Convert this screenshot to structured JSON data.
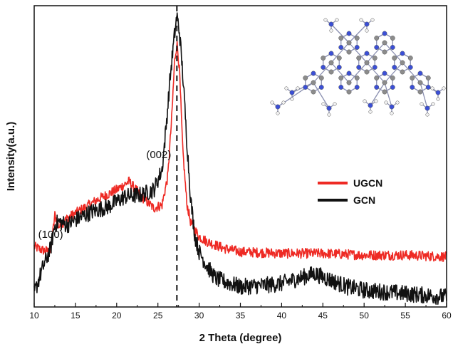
{
  "chart_data": {
    "type": "line",
    "title": "",
    "xlabel": "2 Theta (degree)",
    "ylabel": "Intensity(a.u.)",
    "xlim": [
      10,
      60
    ],
    "x_ticks": [
      10,
      15,
      20,
      25,
      30,
      35,
      40,
      45,
      50,
      55,
      60
    ],
    "y_ticks": [],
    "grid": false,
    "legend_position": "right",
    "reference_line_x": 27.3,
    "annotations": [
      {
        "text": "(002)",
        "x": 25.1
      },
      {
        "text": "(100)",
        "x": 12.0
      }
    ],
    "series": [
      {
        "name": "UGCN",
        "color": "#ee2a24",
        "noise": 0.6,
        "x": [
          10.0,
          11.0,
          12.0,
          12.5,
          13.0,
          14.0,
          16.0,
          18.0,
          20.0,
          21.5,
          23.0,
          24.5,
          25.5,
          26.2,
          26.7,
          27.0,
          27.3,
          27.6,
          28.0,
          28.5,
          29.0,
          30.0,
          31.0,
          33.0,
          35.0,
          40.0,
          45.0,
          50.0,
          55.0,
          60.0
        ],
        "y": [
          3.6,
          3.4,
          3.3,
          5.5,
          4.8,
          5.3,
          5.9,
          6.5,
          7.0,
          7.5,
          6.6,
          5.9,
          6.1,
          7.8,
          11.5,
          14.5,
          15.8,
          14.3,
          9.5,
          6.2,
          5.0,
          4.2,
          3.9,
          3.5,
          3.3,
          3.2,
          3.2,
          3.1,
          3.1,
          3.0
        ]
      },
      {
        "name": "GCN",
        "color": "#111111",
        "noise": 1.0,
        "x": [
          10.0,
          11.0,
          12.0,
          12.5,
          13.0,
          14.0,
          15.0,
          17.0,
          19.0,
          21.0,
          23.0,
          24.5,
          25.5,
          26.0,
          26.5,
          27.0,
          27.3,
          27.6,
          28.0,
          28.5,
          29.0,
          29.5,
          30.0,
          31.0,
          32.0,
          35.0,
          38.0,
          40.0,
          42.0,
          44.0,
          46.0,
          48.0,
          50.0,
          55.0,
          60.0
        ],
        "y": [
          0.8,
          2.3,
          3.5,
          4.9,
          5.1,
          4.9,
          5.2,
          5.7,
          6.0,
          6.6,
          6.7,
          7.0,
          8.2,
          10.8,
          13.8,
          16.2,
          17.4,
          16.5,
          14.0,
          10.0,
          6.3,
          4.2,
          3.3,
          2.4,
          1.7,
          1.2,
          1.3,
          1.4,
          1.7,
          2.0,
          1.6,
          1.2,
          1.0,
          0.8,
          0.6
        ]
      }
    ]
  }
}
